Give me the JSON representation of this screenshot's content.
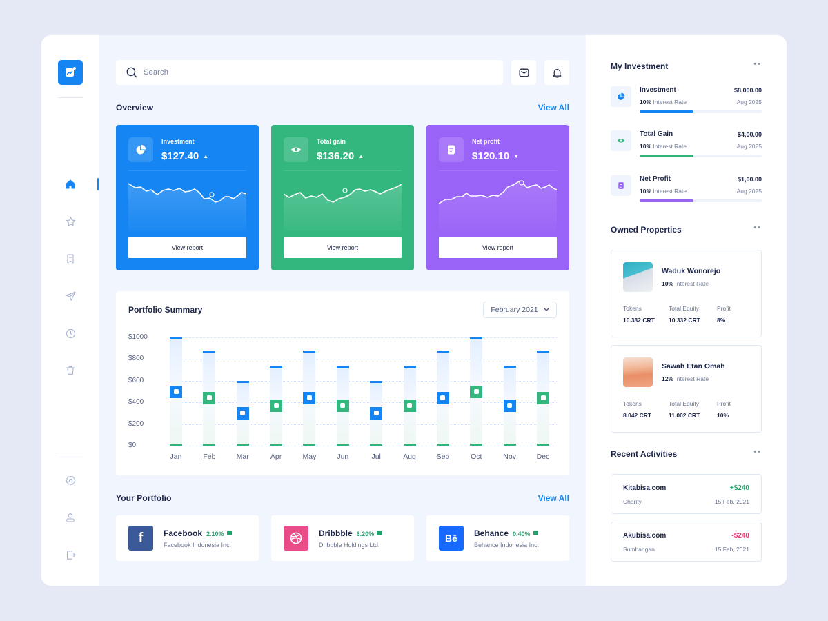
{
  "colors": {
    "accent_blue": "#1485f2",
    "accent_green": "#34b77f",
    "accent_purple": "#9a63f7",
    "positive": "#24a06b",
    "negative": "#e83e77"
  },
  "sidebar": {
    "logo": "chart-logo-icon",
    "items": [
      {
        "name": "home",
        "icon": "home-icon",
        "active": true
      },
      {
        "name": "favorites",
        "icon": "star-icon",
        "active": false
      },
      {
        "name": "bookmarks",
        "icon": "bookmark-icon",
        "active": false
      },
      {
        "name": "send",
        "icon": "send-icon",
        "active": false
      },
      {
        "name": "history",
        "icon": "clock-icon",
        "active": false
      },
      {
        "name": "trash",
        "icon": "trash-icon",
        "active": false
      }
    ],
    "bottom_items": [
      {
        "name": "settings",
        "icon": "gear-icon"
      },
      {
        "name": "profile",
        "icon": "user-icon"
      },
      {
        "name": "logout",
        "icon": "logout-icon"
      }
    ]
  },
  "header": {
    "search_placeholder": "Search",
    "mail_icon": "mail-icon",
    "bell_icon": "bell-icon"
  },
  "overview": {
    "title": "Overview",
    "view_all": "View All",
    "cards": [
      {
        "label": "Investment",
        "value": "$127.40",
        "trend": "▲",
        "icon": "pie-chart-icon",
        "color": "#1485f2",
        "button": "View report"
      },
      {
        "label": "Total gain",
        "value": "$136.20",
        "trend": "▲",
        "icon": "eye-icon",
        "color": "#34b77f",
        "button": "View report"
      },
      {
        "label": "Net profit",
        "value": "$120.10",
        "trend": "▼",
        "icon": "document-icon",
        "color": "#9a63f7",
        "button": "View report"
      }
    ]
  },
  "portfolio_summary": {
    "title": "Portfolio Summary",
    "period": "February 2021",
    "y_ticks": [
      "$1000",
      "$800",
      "$600",
      "$400",
      "$200",
      "$0"
    ]
  },
  "chart_data": {
    "type": "bar",
    "title": "Portfolio Summary",
    "xlabel": "",
    "ylabel": "",
    "ylim": [
      0,
      1000
    ],
    "categories": [
      "Jan",
      "Feb",
      "Mar",
      "Apr",
      "May",
      "Jun",
      "Jul",
      "Aug",
      "Sep",
      "Oct",
      "Nov",
      "Dec"
    ],
    "series": [
      {
        "name": "Total",
        "values": [
          1000,
          880,
          600,
          740,
          880,
          740,
          600,
          740,
          880,
          1000,
          740,
          880
        ]
      },
      {
        "name": "Marker",
        "values": [
          500,
          440,
          300,
          370,
          440,
          370,
          300,
          370,
          440,
          500,
          370,
          440
        ]
      }
    ],
    "marker_colors": [
      "blue",
      "green",
      "blue",
      "green",
      "blue",
      "green",
      "blue",
      "green",
      "blue",
      "green",
      "blue",
      "green"
    ],
    "grid": true,
    "legend": null
  },
  "your_portfolio": {
    "title": "Your Portfolio",
    "view_all": "View All",
    "items": [
      {
        "name": "Facebook",
        "percent": "2.10%",
        "company": "Facebook Indonesia Inc.",
        "icon": "facebook-icon",
        "color": "#3b5998",
        "glyph": "f"
      },
      {
        "name": "Dribbble",
        "percent": "6.20%",
        "company": "Dribbble Holdings Ltd.",
        "icon": "dribbble-icon",
        "color": "#ea4c89",
        "glyph": ""
      },
      {
        "name": "Behance",
        "percent": "0.40%",
        "company": "Behance Indonesia Inc.",
        "icon": "behance-icon",
        "color": "#1769ff",
        "glyph": "Bē"
      }
    ]
  },
  "my_investment": {
    "title": "My Investment",
    "items": [
      {
        "name": "Investment",
        "amount": "$8,000.00",
        "rate": "10%",
        "rate_label": "Interest Rate",
        "date": "Aug 2025",
        "color": "#1485f2",
        "icon": "pie-chart-icon"
      },
      {
        "name": "Total Gain",
        "amount": "$4,00.00",
        "rate": "10%",
        "rate_label": "Interest Rate",
        "date": "Aug 2025",
        "color": "#2fb57a",
        "icon": "eye-icon"
      },
      {
        "name": "Net Profit",
        "amount": "$1,00.00",
        "rate": "10%",
        "rate_label": "Interest Rate",
        "date": "Aug 2025",
        "color": "#9a63f7",
        "icon": "document-icon"
      }
    ]
  },
  "owned_properties": {
    "title": "Owned Properties",
    "labels": {
      "tokens": "Tokens",
      "equity": "Total Equity",
      "profit": "Profit"
    },
    "items": [
      {
        "name": "Waduk Wonorejo",
        "rate": "10%",
        "rate_label": "Interest Rate",
        "tokens": "10.332 CRT",
        "equity": "10.332 CRT",
        "profit": "8%"
      },
      {
        "name": "Sawah Etan Omah",
        "rate": "12%",
        "rate_label": "Interest Rate",
        "tokens": "8.042 CRT",
        "equity": "11.002 CRT",
        "profit": "10%"
      }
    ]
  },
  "recent_activities": {
    "title": "Recent Activities",
    "items": [
      {
        "name": "Kitabisa.com",
        "amount": "+$240",
        "category": "Charity",
        "date": "15 Feb, 2021",
        "positive": true
      },
      {
        "name": "Akubisa.com",
        "amount": "-$240",
        "category": "Sumbangan",
        "date": "15 Feb, 2021",
        "positive": false
      }
    ]
  }
}
